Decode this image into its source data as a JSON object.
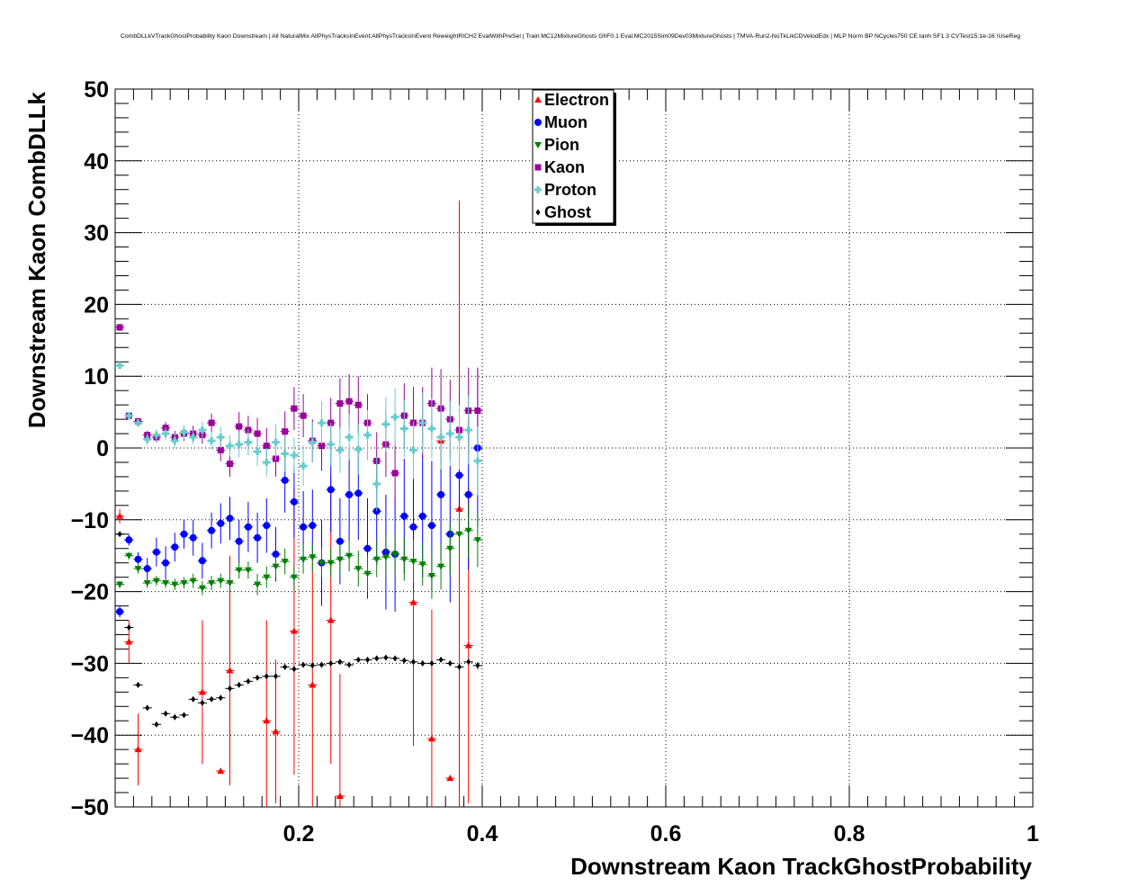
{
  "chart_data": {
    "type": "scatter",
    "title": "CombDLLkVTrackGhostProbability Kaon Downstream | All NaturalMix AllPhysTracksInEvent:AllPhysTracksInEvent ReweightRICH2 EvalWithPreSel | Train:MC12MixtureGhosts GhF0.1 Eval:MC2015Sim09Dev03MixtureGhosts | TMVA-Run2-NoTkLikCDVelodEdx | MLP Norm BP NCycles750 CE tanh SF1.3 CVTest15:1e-16 !UseReg",
    "xlabel": "Downstream Kaon TrackGhostProbability",
    "ylabel": "Downstream Kaon CombDLLk",
    "xlim": [
      0,
      1
    ],
    "ylim": [
      -50,
      50
    ],
    "x_ticks": [
      0.2,
      0.4,
      0.6,
      0.8,
      1
    ],
    "x_tick_labels": [
      "0.2",
      "0.4",
      "0.6",
      "0.8",
      "1"
    ],
    "y_ticks": [
      -50,
      -40,
      -30,
      -20,
      -10,
      0,
      10,
      20,
      30,
      40,
      50
    ],
    "y_tick_labels": [
      "−50",
      "−40",
      "−30",
      "−20",
      "−10",
      "0",
      "10",
      "20",
      "30",
      "40",
      "50"
    ],
    "grid": true,
    "legend_position": "top-center",
    "x": [
      0.005,
      0.015,
      0.025,
      0.035,
      0.045,
      0.055,
      0.065,
      0.075,
      0.085,
      0.095,
      0.105,
      0.115,
      0.125,
      0.135,
      0.145,
      0.155,
      0.165,
      0.175,
      0.185,
      0.195,
      0.205,
      0.215,
      0.225,
      0.235,
      0.245,
      0.255,
      0.265,
      0.275,
      0.285,
      0.295,
      0.305,
      0.315,
      0.325,
      0.335,
      0.345,
      0.355,
      0.365,
      0.375,
      0.385,
      0.395
    ],
    "series": [
      {
        "name": "Electron",
        "color": "#ff0000",
        "marker": "triangle-up",
        "y": [
          -9.5,
          -27,
          -42,
          null,
          null,
          null,
          null,
          null,
          null,
          -34,
          null,
          -45,
          -31,
          null,
          null,
          null,
          -38,
          -39.5,
          null,
          -25.5,
          null,
          -33,
          null,
          -24,
          -48.5,
          null,
          null,
          null,
          null,
          null,
          null,
          null,
          -21.5,
          null,
          -40.5,
          1,
          -46,
          -8.5,
          -27.5,
          null
        ],
        "err": [
          1,
          3,
          5,
          0,
          0,
          0,
          0,
          0,
          0,
          10,
          0,
          0,
          16,
          0,
          0,
          0,
          14,
          10,
          0,
          20,
          0,
          17,
          0,
          20,
          17,
          0,
          0,
          0,
          0,
          0,
          0,
          0,
          20,
          0,
          18,
          3,
          0,
          43,
          22,
          0
        ]
      },
      {
        "name": "Muon",
        "color": "#0000ff",
        "marker": "circle",
        "y": [
          -22.8,
          -12.8,
          -15.5,
          -16.8,
          -14.5,
          -16,
          -13.8,
          -12,
          -12.5,
          -15.7,
          -11.5,
          -10.5,
          -9.8,
          -13,
          -11,
          -12.5,
          -10.8,
          -14.8,
          -4.5,
          -7.5,
          -11,
          -10.8,
          -16,
          -5.8,
          -13,
          -6.5,
          -6.3,
          -14,
          -8.8,
          -14.5,
          -14.8,
          -9.5,
          -11,
          -9.5,
          -10.8,
          -6.5,
          -12,
          -3.8,
          -6.5,
          0
        ],
        "err": [
          0.8,
          0.8,
          1,
          1.5,
          2,
          2.3,
          2,
          2,
          2.5,
          2.5,
          2.5,
          2.8,
          3,
          3,
          3.5,
          3.5,
          3.8,
          3.8,
          4.5,
          5,
          5,
          5,
          6,
          6,
          6,
          6.5,
          6.5,
          7,
          7.5,
          8,
          8,
          8,
          8.5,
          8.5,
          9,
          9,
          9.5,
          10,
          10.5,
          11
        ]
      },
      {
        "name": "Pion",
        "color": "#008000",
        "marker": "triangle-down",
        "y": [
          -19,
          -15,
          -16.8,
          -18.8,
          -18.5,
          -18.8,
          -19,
          -18.8,
          -18.5,
          -19.5,
          -18.8,
          -18.5,
          -18.8,
          -17,
          -17,
          -19,
          -18,
          -16.5,
          -15.8,
          -18,
          -15.5,
          -15.2,
          -16,
          -16,
          -15.5,
          -15,
          -16.8,
          -17.5,
          -15.5,
          -15.2,
          -14.8,
          -15.5,
          -15.8,
          -16.2,
          -17.8,
          -16.5,
          -14,
          -12,
          -11.5,
          -12.8
        ],
        "err": [
          0.5,
          0.5,
          0.7,
          0.7,
          0.7,
          0.7,
          0.8,
          0.8,
          1,
          1,
          1,
          1,
          1.2,
          1.2,
          1.2,
          1.5,
          1.5,
          1.5,
          1.8,
          1.8,
          2,
          2,
          2,
          2,
          2.2,
          2.2,
          2.5,
          2.5,
          2.5,
          2.8,
          2.8,
          3,
          3,
          3,
          3.2,
          3.2,
          3.5,
          3.5,
          3.8,
          3.8
        ]
      },
      {
        "name": "Kaon",
        "color": "#990099",
        "marker": "square",
        "y": [
          16.8,
          4.5,
          3.7,
          1.8,
          1.5,
          2.8,
          1.5,
          2,
          2,
          1.8,
          3.5,
          -0.3,
          -2.2,
          3,
          2.5,
          2,
          0.3,
          -1.5,
          2.3,
          5.5,
          4.5,
          1,
          0.3,
          3.5,
          6.2,
          6.5,
          6,
          3.5,
          -1.8,
          0.5,
          -3.5,
          4.5,
          3.5,
          3.5,
          6.2,
          5.5,
          4,
          2.5,
          5.2,
          5.2
        ],
        "err": [
          0.5,
          0.4,
          0.5,
          0.6,
          0.7,
          0.8,
          0.9,
          1,
          1.1,
          1.2,
          1.3,
          1.5,
          1.8,
          2,
          2,
          2.2,
          2.5,
          2.5,
          2.8,
          3,
          3,
          3,
          3.5,
          3.5,
          3.5,
          3.8,
          4,
          4,
          4,
          4.5,
          4.5,
          4.5,
          5,
          5,
          5,
          5.5,
          5.5,
          5.5,
          6,
          6
        ]
      },
      {
        "name": "Proton",
        "color": "#66cccc",
        "marker": "cross",
        "y": [
          11.5,
          4.5,
          3.5,
          1.2,
          1.8,
          2,
          1,
          2.2,
          1.5,
          2.5,
          1,
          1.5,
          0.3,
          0.5,
          0.8,
          -0.5,
          -2,
          0.8,
          -0.8,
          -1,
          -2.5,
          0.8,
          3.5,
          0.5,
          -0.3,
          1.5,
          -0.2,
          1.8,
          -5,
          3.3,
          4.3,
          2.7,
          -0.3,
          3.5,
          2.7,
          1.5,
          2,
          1.5,
          2.5,
          -1.8
        ],
        "err": [
          0.5,
          0.5,
          0.5,
          0.8,
          0.8,
          0.9,
          1,
          1,
          1,
          1.2,
          1.2,
          1.5,
          1.5,
          1.8,
          1.8,
          2,
          2,
          2.5,
          2.5,
          2.5,
          2.8,
          2.8,
          3,
          3,
          3.2,
          3.2,
          3.5,
          3.5,
          3.8,
          3.8,
          4,
          4,
          4,
          4.2,
          4.2,
          4.5,
          4.5,
          4.5,
          4.8,
          4.8
        ]
      },
      {
        "name": "Ghost",
        "color": "#000000",
        "marker": "star",
        "y": [
          -12,
          -25,
          -33,
          -36.2,
          -38.5,
          -37,
          -37.5,
          -37.2,
          -35,
          -35.5,
          -35,
          -34.8,
          -33.5,
          -33,
          -32.5,
          -32,
          -31.8,
          -31.8,
          -30.5,
          -30.8,
          -30.2,
          -30.3,
          -30.2,
          -30,
          -29.8,
          -30.2,
          -29.5,
          -29.5,
          -29.3,
          -29.2,
          -29.3,
          -29.6,
          -29.8,
          -30,
          -30,
          -29.5,
          -30,
          -30.5,
          -29.8,
          -30.3
        ],
        "err": [
          0.3,
          0.3,
          0.3,
          0.3,
          0.3,
          0.3,
          0.3,
          0.3,
          0.3,
          0.3,
          0.3,
          0.3,
          0.3,
          0.3,
          0.3,
          0.3,
          0.3,
          0.3,
          0.3,
          0.3,
          0.3,
          0.3,
          0.3,
          0.3,
          0.3,
          0.3,
          0.3,
          0.3,
          0.3,
          0.3,
          0.3,
          0.3,
          0.3,
          0.3,
          0.3,
          0.3,
          0.3,
          0.3,
          0.4,
          0.5
        ]
      }
    ]
  }
}
